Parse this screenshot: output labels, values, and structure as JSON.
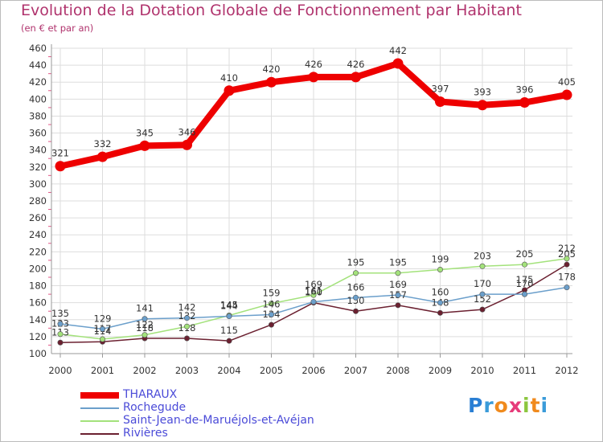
{
  "header": {
    "title": "Evolution de la Dotation Globale de Fonctionnement par Habitant",
    "subtitle": "(en € et par an)"
  },
  "logo": {
    "text": "Proxiti",
    "letters": [
      "P",
      "r",
      "o",
      "x",
      "i",
      "t",
      "i"
    ],
    "colors": [
      "#2a7fd4",
      "#3a9bd9",
      "#f08a1d",
      "#e63b7a",
      "#8cc63f",
      "#f08a1d",
      "#3a9bd9"
    ]
  },
  "colors": {
    "grid": "#dddddd",
    "axis": "#999999",
    "tick_text": "#333333",
    "minor_tick": "#e05585"
  },
  "chart_data": {
    "type": "line",
    "title": "Evolution de la Dotation Globale de Fonctionnement par Habitant",
    "subtitle": "(en € et par an)",
    "x": [
      "2000",
      "2001",
      "2002",
      "2003",
      "2004",
      "2005",
      "2006",
      "2007",
      "2008",
      "2009",
      "2010",
      "2011",
      "2012"
    ],
    "ylim": [
      100,
      460
    ],
    "yticks": [
      100,
      120,
      140,
      160,
      180,
      200,
      220,
      240,
      260,
      280,
      300,
      320,
      340,
      360,
      380,
      400,
      420,
      440,
      460
    ],
    "grid": true,
    "legend_position": "bottom-left",
    "series": [
      {
        "name": "THARAUX",
        "color": "#ee0000",
        "values": [
          321,
          332,
          345,
          346,
          410,
          420,
          426,
          426,
          442,
          397,
          393,
          396,
          405
        ],
        "labels": [
          "321",
          "332",
          "345",
          "346",
          "410",
          "420",
          "426",
          "426",
          "442",
          "397",
          "393",
          "396",
          "405"
        ]
      },
      {
        "name": "Rochegude",
        "color": "#6b9fcb",
        "values": [
          135,
          129,
          141,
          142,
          144,
          146,
          161,
          166,
          169,
          160,
          170,
          170,
          178
        ],
        "labels": [
          "135",
          "129",
          "141",
          "142",
          "144",
          "146",
          "161",
          "166",
          "169",
          "160",
          "170",
          "170",
          "178"
        ]
      },
      {
        "name": "Saint-Jean-de-Maruéjols-et-Avéjan",
        "color": "#a3e27b",
        "values": [
          123,
          117,
          122,
          132,
          145,
          159,
          169,
          195,
          195,
          199,
          203,
          205,
          212
        ],
        "labels": [
          "123",
          "117",
          "122",
          "132",
          "145",
          "159",
          "169",
          "195",
          "195",
          "199",
          "203",
          "205",
          "212"
        ]
      },
      {
        "name": "Rivières",
        "color": "#6b2030",
        "values": [
          113,
          114,
          118,
          118,
          115,
          134,
          160,
          150,
          157,
          148,
          152,
          175,
          205
        ],
        "labels": [
          "113",
          "114",
          "118",
          "118",
          "115",
          "134",
          "160",
          "150",
          "157",
          "148",
          "152",
          "175",
          "205"
        ]
      }
    ]
  }
}
